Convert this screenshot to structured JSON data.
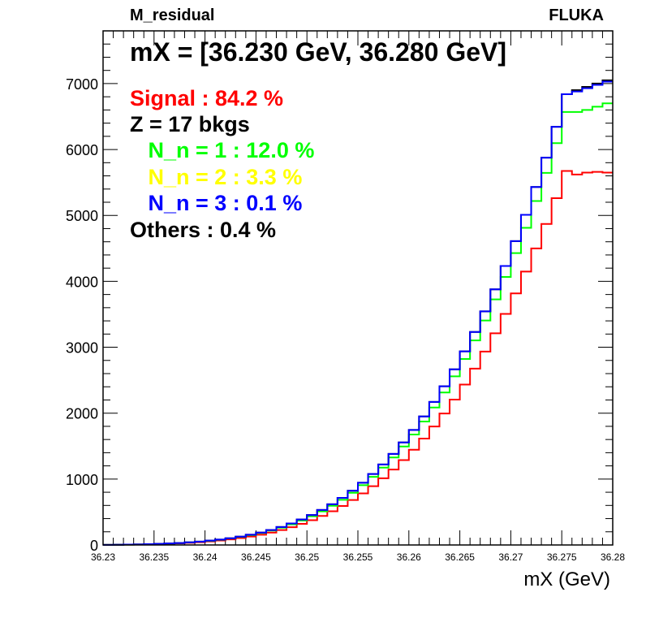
{
  "header": {
    "left": "M_residual",
    "right": "FLUKA"
  },
  "chart_data": {
    "type": "step",
    "xlabel": "mX (GeV)",
    "ylabel": "",
    "xlim": [
      36.23,
      36.28
    ],
    "ylim": [
      0,
      7800
    ],
    "xticks": [
      "36.23",
      "36.235",
      "36.24",
      "36.245",
      "36.25",
      "36.255",
      "36.26",
      "36.265",
      "36.27",
      "36.275",
      "36.28"
    ],
    "yticks": [
      "0",
      "1000",
      "2000",
      "3000",
      "4000",
      "5000",
      "6000",
      "7000"
    ],
    "bin_edges_start": 36.23,
    "bin_width": 0.001,
    "series": [
      {
        "color": "#ff0000",
        "values": [
          2,
          3,
          5,
          7,
          10,
          14,
          19,
          25,
          33,
          42,
          54,
          68,
          84,
          104,
          128,
          156,
          188,
          226,
          270,
          320,
          376,
          440,
          512,
          592,
          682,
          782,
          892,
          1012,
          1144,
          1288,
          1445,
          1614,
          1797,
          1994,
          2206,
          2433,
          2676,
          2935,
          3211,
          3505,
          3817,
          4148,
          4499,
          4870,
          5262,
          5675,
          5620,
          5650,
          5660,
          5650
        ]
      },
      {
        "color": "#00ff00",
        "values": [
          2,
          3,
          5,
          8,
          12,
          16,
          22,
          29,
          38,
          49,
          63,
          79,
          98,
          121,
          149,
          181,
          218,
          262,
          313,
          371,
          436,
          510,
          594,
          686,
          791,
          907,
          1034,
          1174,
          1327,
          1494,
          1676,
          1873,
          2085,
          2313,
          2559,
          2822,
          3104,
          3405,
          3726,
          4067,
          4429,
          4812,
          5218,
          5645,
          6096,
          6570,
          6570,
          6600,
          6650,
          6700
        ]
      },
      {
        "color": "#000000",
        "values": [
          2,
          3,
          6,
          8,
          12,
          17,
          23,
          30,
          40,
          51,
          66,
          82,
          102,
          126,
          155,
          188,
          227,
          273,
          326,
          386,
          454,
          531,
          618,
          715,
          823,
          944,
          1076,
          1222,
          1381,
          1555,
          1745,
          1950,
          2170,
          2408,
          2664,
          2938,
          3231,
          3544,
          3878,
          4233,
          4610,
          5009,
          5431,
          5876,
          6345,
          6839,
          6900,
          6950,
          7000,
          7050
        ]
      },
      {
        "color": "#0000ff",
        "values": [
          2,
          3,
          6,
          8,
          12,
          17,
          23,
          30,
          40,
          51,
          66,
          82,
          102,
          126,
          155,
          188,
          227,
          273,
          326,
          386,
          454,
          531,
          618,
          715,
          823,
          944,
          1076,
          1222,
          1381,
          1555,
          1745,
          1950,
          2170,
          2408,
          2664,
          2938,
          3231,
          3544,
          3878,
          4233,
          4610,
          5009,
          5431,
          5876,
          6345,
          6839,
          6880,
          6930,
          6980,
          7030
        ]
      }
    ]
  },
  "annotations": {
    "range": "mX = [36.230 GeV, 36.280 GeV]",
    "signal": "Signal : 84.2 %",
    "z": "Z = 17 bkgs",
    "n1": "   N_n = 1 : 12.0 %",
    "n2": "   N_n = 2 : 3.3 %",
    "n3": "   N_n = 3 : 0.1 %",
    "others": "Others : 0.4 %"
  },
  "colors": {
    "signal": "#ff0000",
    "n1": "#00ff00",
    "n2": "#ffff00",
    "n3": "#0000ff",
    "text": "#000000"
  }
}
